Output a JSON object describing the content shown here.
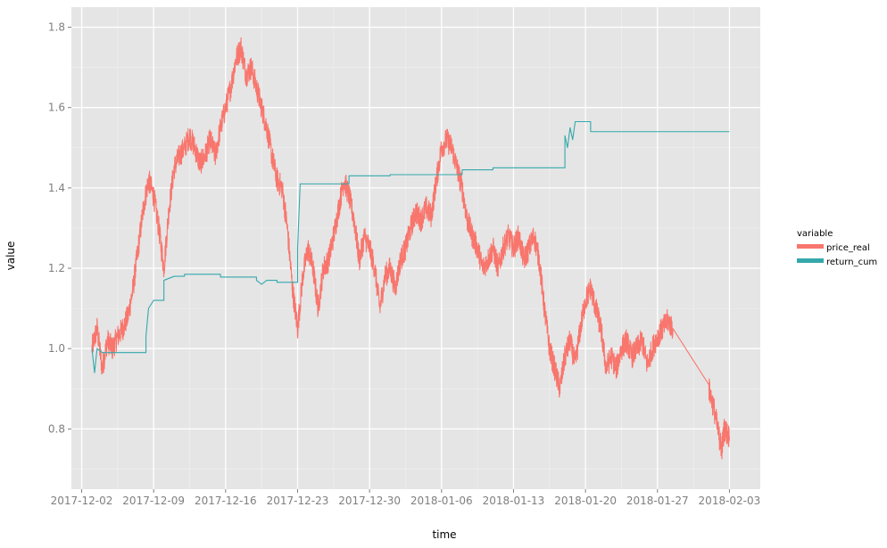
{
  "chart_data": {
    "type": "line",
    "title": "",
    "xlabel": "time",
    "ylabel": "value",
    "x_ticks": [
      "2017-12-02",
      "2017-12-09",
      "2017-12-16",
      "2017-12-23",
      "2017-12-30",
      "2018-01-06",
      "2018-01-13",
      "2018-01-20",
      "2018-01-27",
      "2018-02-03"
    ],
    "y_ticks": [
      0.8,
      1.0,
      1.2,
      1.4,
      1.6,
      1.8
    ],
    "y_tick_labels": [
      "0.8",
      "1.0",
      "1.2",
      "1.4",
      "1.6",
      "1.8"
    ],
    "xlim": [
      "2017-12-01T00:00",
      "2018-02-06T00:00"
    ],
    "ylim": [
      0.65,
      1.85
    ],
    "grid": true,
    "legend": {
      "title": "variable",
      "position": "right"
    },
    "series": [
      {
        "name": "price_real",
        "color": "#f8766d",
        "noise_amp": 0.03,
        "points": [
          [
            "2017-12-03T00:00",
            1.0
          ],
          [
            "2017-12-03T12:00",
            1.05
          ],
          [
            "2017-12-04T00:00",
            0.95
          ],
          [
            "2017-12-04T12:00",
            1.02
          ],
          [
            "2017-12-05T00:00",
            1.0
          ],
          [
            "2017-12-05T12:00",
            1.03
          ],
          [
            "2017-12-06T00:00",
            1.05
          ],
          [
            "2017-12-06T12:00",
            1.08
          ],
          [
            "2017-12-07T00:00",
            1.15
          ],
          [
            "2017-12-07T12:00",
            1.25
          ],
          [
            "2017-12-08T00:00",
            1.35
          ],
          [
            "2017-12-08T12:00",
            1.42
          ],
          [
            "2017-12-09T00:00",
            1.38
          ],
          [
            "2017-12-09T12:00",
            1.3
          ],
          [
            "2017-12-10T00:00",
            1.2
          ],
          [
            "2017-12-10T12:00",
            1.35
          ],
          [
            "2017-12-11T00:00",
            1.45
          ],
          [
            "2017-12-11T12:00",
            1.48
          ],
          [
            "2017-12-12T00:00",
            1.5
          ],
          [
            "2017-12-12T12:00",
            1.53
          ],
          [
            "2017-12-13T00:00",
            1.5
          ],
          [
            "2017-12-13T12:00",
            1.46
          ],
          [
            "2017-12-14T00:00",
            1.48
          ],
          [
            "2017-12-14T12:00",
            1.52
          ],
          [
            "2017-12-15T00:00",
            1.48
          ],
          [
            "2017-12-15T12:00",
            1.55
          ],
          [
            "2017-12-16T00:00",
            1.6
          ],
          [
            "2017-12-16T12:00",
            1.65
          ],
          [
            "2017-12-17T00:00",
            1.72
          ],
          [
            "2017-12-17T12:00",
            1.75
          ],
          [
            "2017-12-18T00:00",
            1.68
          ],
          [
            "2017-12-18T12:00",
            1.7
          ],
          [
            "2017-12-19T00:00",
            1.65
          ],
          [
            "2017-12-19T12:00",
            1.6
          ],
          [
            "2017-12-20T00:00",
            1.55
          ],
          [
            "2017-12-20T12:00",
            1.48
          ],
          [
            "2017-12-21T00:00",
            1.42
          ],
          [
            "2017-12-21T12:00",
            1.4
          ],
          [
            "2017-12-22T00:00",
            1.3
          ],
          [
            "2017-12-22T12:00",
            1.15
          ],
          [
            "2017-12-23T00:00",
            1.05
          ],
          [
            "2017-12-23T12:00",
            1.18
          ],
          [
            "2017-12-24T00:00",
            1.25
          ],
          [
            "2017-12-24T12:00",
            1.2
          ],
          [
            "2017-12-25T00:00",
            1.1
          ],
          [
            "2017-12-25T12:00",
            1.2
          ],
          [
            "2017-12-26T00:00",
            1.22
          ],
          [
            "2017-12-26T12:00",
            1.28
          ],
          [
            "2017-12-27T00:00",
            1.35
          ],
          [
            "2017-12-27T12:00",
            1.42
          ],
          [
            "2017-12-28T00:00",
            1.38
          ],
          [
            "2017-12-28T12:00",
            1.32
          ],
          [
            "2017-12-29T00:00",
            1.22
          ],
          [
            "2017-12-29T12:00",
            1.28
          ],
          [
            "2017-12-30T00:00",
            1.25
          ],
          [
            "2017-12-30T12:00",
            1.2
          ],
          [
            "2017-12-31T00:00",
            1.1
          ],
          [
            "2017-12-31T12:00",
            1.18
          ],
          [
            "2018-01-01T00:00",
            1.2
          ],
          [
            "2018-01-01T12:00",
            1.15
          ],
          [
            "2018-01-02T00:00",
            1.22
          ],
          [
            "2018-01-02T12:00",
            1.25
          ],
          [
            "2018-01-03T00:00",
            1.3
          ],
          [
            "2018-01-03T12:00",
            1.34
          ],
          [
            "2018-01-04T00:00",
            1.32
          ],
          [
            "2018-01-04T12:00",
            1.35
          ],
          [
            "2018-01-05T00:00",
            1.33
          ],
          [
            "2018-01-05T12:00",
            1.42
          ],
          [
            "2018-01-06T00:00",
            1.5
          ],
          [
            "2018-01-06T12:00",
            1.52
          ],
          [
            "2018-01-07T00:00",
            1.5
          ],
          [
            "2018-01-07T12:00",
            1.45
          ],
          [
            "2018-01-08T00:00",
            1.4
          ],
          [
            "2018-01-08T12:00",
            1.32
          ],
          [
            "2018-01-09T00:00",
            1.28
          ],
          [
            "2018-01-09T12:00",
            1.25
          ],
          [
            "2018-01-10T00:00",
            1.2
          ],
          [
            "2018-01-10T12:00",
            1.22
          ],
          [
            "2018-01-11T00:00",
            1.25
          ],
          [
            "2018-01-11T12:00",
            1.2
          ],
          [
            "2018-01-12T00:00",
            1.25
          ],
          [
            "2018-01-12T12:00",
            1.28
          ],
          [
            "2018-01-13T00:00",
            1.25
          ],
          [
            "2018-01-13T12:00",
            1.28
          ],
          [
            "2018-01-14T00:00",
            1.22
          ],
          [
            "2018-01-14T12:00",
            1.25
          ],
          [
            "2018-01-15T00:00",
            1.28
          ],
          [
            "2018-01-15T12:00",
            1.22
          ],
          [
            "2018-01-16T00:00",
            1.1
          ],
          [
            "2018-01-16T12:00",
            1.0
          ],
          [
            "2018-01-17T00:00",
            0.95
          ],
          [
            "2018-01-17T12:00",
            0.9
          ],
          [
            "2018-01-18T00:00",
            0.98
          ],
          [
            "2018-01-18T12:00",
            1.02
          ],
          [
            "2018-01-19T00:00",
            0.96
          ],
          [
            "2018-01-19T12:00",
            1.05
          ],
          [
            "2018-01-20T00:00",
            1.12
          ],
          [
            "2018-01-20T12:00",
            1.15
          ],
          [
            "2018-01-21T00:00",
            1.1
          ],
          [
            "2018-01-21T12:00",
            1.05
          ],
          [
            "2018-01-22T00:00",
            0.95
          ],
          [
            "2018-01-22T12:00",
            0.98
          ],
          [
            "2018-01-23T00:00",
            0.95
          ],
          [
            "2018-01-23T12:00",
            1.0
          ],
          [
            "2018-01-24T00:00",
            1.02
          ],
          [
            "2018-01-24T12:00",
            0.98
          ],
          [
            "2018-01-25T00:00",
            1.0
          ],
          [
            "2018-01-25T12:00",
            1.02
          ],
          [
            "2018-01-26T00:00",
            0.96
          ],
          [
            "2018-01-26T12:00",
            1.0
          ],
          [
            "2018-01-27T00:00",
            1.03
          ],
          [
            "2018-01-27T12:00",
            1.05
          ],
          [
            "2018-01-28T00:00",
            1.07
          ],
          [
            "2018-01-28T12:00",
            1.05
          ],
          [
            "2018-02-01T00:00",
            0.9
          ],
          [
            "2018-02-01T12:00",
            0.85
          ],
          [
            "2018-02-02T00:00",
            0.78
          ],
          [
            "2018-02-02T06:00",
            0.75
          ],
          [
            "2018-02-02T12:00",
            0.8
          ],
          [
            "2018-02-03T00:00",
            0.78
          ]
        ]
      },
      {
        "name": "return_cum",
        "color": "#35a8ac",
        "points": [
          [
            "2017-12-03T00:00",
            1.0
          ],
          [
            "2017-12-03T06:00",
            0.94
          ],
          [
            "2017-12-03T12:00",
            1.0
          ],
          [
            "2017-12-04T00:00",
            0.99
          ],
          [
            "2017-12-08T06:00",
            0.99
          ],
          [
            "2017-12-08T06:00",
            1.03
          ],
          [
            "2017-12-08T12:00",
            1.1
          ],
          [
            "2017-12-09T00:00",
            1.12
          ],
          [
            "2017-12-10T00:00",
            1.12
          ],
          [
            "2017-12-10T00:00",
            1.17
          ],
          [
            "2017-12-11T00:00",
            1.18
          ],
          [
            "2017-12-12T00:00",
            1.18
          ],
          [
            "2017-12-12T00:00",
            1.185
          ],
          [
            "2017-12-15T12:00",
            1.185
          ],
          [
            "2017-12-15T12:00",
            1.178
          ],
          [
            "2017-12-19T00:00",
            1.178
          ],
          [
            "2017-12-19T00:00",
            1.17
          ],
          [
            "2017-12-19T12:00",
            1.16
          ],
          [
            "2017-12-20T00:00",
            1.17
          ],
          [
            "2017-12-21T00:00",
            1.17
          ],
          [
            "2017-12-21T00:00",
            1.165
          ],
          [
            "2017-12-23T00:00",
            1.165
          ],
          [
            "2017-12-23T00:00",
            1.25
          ],
          [
            "2017-12-23T06:00",
            1.41
          ],
          [
            "2017-12-28T00:00",
            1.41
          ],
          [
            "2017-12-28T00:00",
            1.43
          ],
          [
            "2018-01-01T00:00",
            1.43
          ],
          [
            "2018-01-01T00:00",
            1.433
          ],
          [
            "2018-01-08T00:00",
            1.433
          ],
          [
            "2018-01-08T00:00",
            1.445
          ],
          [
            "2018-01-11T00:00",
            1.445
          ],
          [
            "2018-01-11T00:00",
            1.45
          ],
          [
            "2018-01-18T00:00",
            1.45
          ],
          [
            "2018-01-18T00:00",
            1.53
          ],
          [
            "2018-01-18T06:00",
            1.5
          ],
          [
            "2018-01-18T12:00",
            1.55
          ],
          [
            "2018-01-18T18:00",
            1.52
          ],
          [
            "2018-01-19T00:00",
            1.565
          ],
          [
            "2018-01-20T12:00",
            1.565
          ],
          [
            "2018-01-20T12:00",
            1.54
          ],
          [
            "2018-02-03T00:00",
            1.54
          ]
        ]
      }
    ]
  }
}
